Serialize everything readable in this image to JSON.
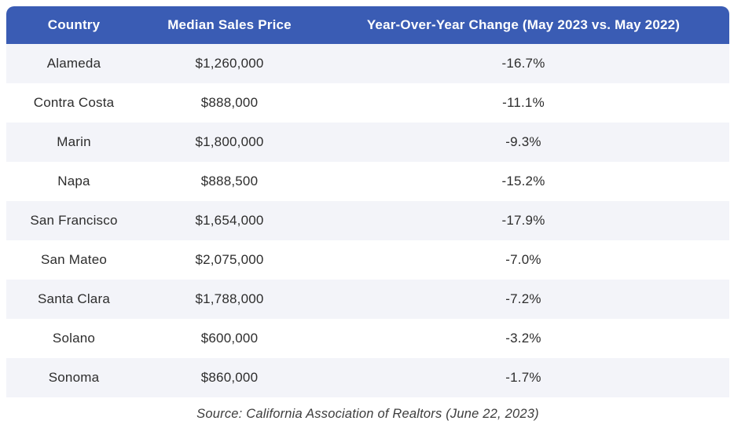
{
  "chart_data": {
    "type": "table",
    "columns": [
      "Country",
      "Median Sales Price",
      "Year-Over-Year Change (May 2023 vs. May 2022)"
    ],
    "rows": [
      [
        "Alameda",
        "$1,260,000",
        "-16.7%"
      ],
      [
        "Contra Costa",
        "$888,000",
        "-11.1%"
      ],
      [
        "Marin",
        "$1,800,000",
        "-9.3%"
      ],
      [
        "Napa",
        "$888,500",
        "-15.2%"
      ],
      [
        "San Francisco",
        "$1,654,000",
        "-17.9%"
      ],
      [
        "San Mateo",
        "$2,075,000",
        "-7.0%"
      ],
      [
        "Santa Clara",
        "$1,788,000",
        "-7.2%"
      ],
      [
        "Solano",
        "$600,000",
        "-3.2%"
      ],
      [
        "Sonoma",
        "$860,000",
        "-1.7%"
      ]
    ],
    "median_prices_usd": [
      1260000,
      888000,
      1800000,
      888500,
      1654000,
      2075000,
      1788000,
      600000,
      860000
    ],
    "yoy_change_pct": [
      -16.7,
      -11.1,
      -9.3,
      -15.2,
      -17.9,
      -7.0,
      -7.2,
      -3.2,
      -1.7
    ],
    "source": "Source: California Association of Realtors (June 22, 2023)",
    "layout_hints": {
      "header_position": "top",
      "row_striping": "odd-rows-shaded",
      "cell_alignment": "center"
    }
  },
  "colors": {
    "header_bg": "#3a5cb4",
    "header_text": "#ffffff",
    "row_bg": "#ffffff",
    "row_alt_bg": "#f3f4f9",
    "cell_text": "#2d2d2d",
    "source_text": "#3d3d3d"
  }
}
